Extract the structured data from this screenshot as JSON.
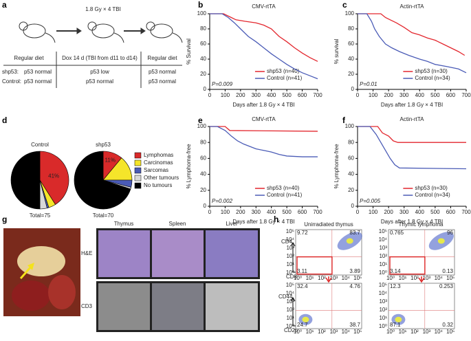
{
  "panel_labels": [
    "a",
    "b",
    "c",
    "d",
    "e",
    "f",
    "g",
    "h"
  ],
  "panel_a": {
    "title": "1.8 Gy × 4 TBI",
    "stages": [
      "Regular diet",
      "Dox 14 d (TBI from d11 to d14)",
      "Regular diet"
    ],
    "rows": [
      {
        "name": "shp53:",
        "cells": [
          "p53 normal",
          "p53 low",
          "p53 normal"
        ]
      },
      {
        "name": "Control:",
        "cells": [
          "p53 normal",
          "p53 normal",
          "p53 normal"
        ]
      }
    ]
  },
  "chart_data": [
    {
      "type": "line",
      "title": "CMV-rtTA",
      "ylabel": "% Survival",
      "xlabel": "Days after 1.8 Gy × 4 TBI",
      "annotation": "P=0.009",
      "legend": "lower right",
      "xlim": [
        0,
        700
      ],
      "xticks": [
        0,
        100,
        200,
        300,
        400,
        500,
        600,
        700
      ],
      "ylim": [
        0,
        100
      ],
      "yticks": [
        0,
        20,
        40,
        60,
        80,
        100
      ],
      "series": [
        {
          "name": "shp53 (n=40)",
          "color": "#e3262d",
          "x": [
            0,
            90,
            140,
            170,
            230,
            300,
            350,
            400,
            450,
            500,
            550,
            600,
            650,
            700
          ],
          "values": [
            100,
            100,
            95,
            92,
            90,
            88,
            85,
            80,
            70,
            63,
            55,
            48,
            42,
            37
          ]
        },
        {
          "name": "Control (n=41)",
          "color": "#4a5bb6",
          "x": [
            0,
            80,
            120,
            160,
            200,
            250,
            300,
            350,
            400,
            450,
            500,
            550,
            600,
            650,
            700
          ],
          "values": [
            100,
            100,
            95,
            88,
            80,
            70,
            63,
            55,
            47,
            40,
            33,
            27,
            22,
            18,
            14
          ]
        }
      ]
    },
    {
      "type": "line",
      "title": "Actin-rtTA",
      "ylabel": "% survival",
      "xlabel": "Days after 1.8 Gy × 4 TBI",
      "annotation": "P=0.01",
      "legend": "lower right",
      "xlim": [
        0,
        700
      ],
      "xticks": [
        0,
        100,
        200,
        300,
        400,
        500,
        600,
        700
      ],
      "ylim": [
        0,
        100
      ],
      "yticks": [
        0,
        20,
        40,
        60,
        80,
        100
      ],
      "series": [
        {
          "name": "shp53 (n=30)",
          "color": "#e3262d",
          "x": [
            0,
            150,
            180,
            210,
            250,
            300,
            350,
            400,
            450,
            500,
            550,
            600,
            650,
            690
          ],
          "values": [
            100,
            100,
            95,
            92,
            88,
            82,
            75,
            72,
            68,
            65,
            60,
            55,
            50,
            45
          ]
        },
        {
          "name": "Control (n=34)",
          "color": "#4a5bb6",
          "x": [
            0,
            60,
            90,
            110,
            140,
            180,
            220,
            270,
            330,
            400,
            450,
            500,
            580,
            650,
            700
          ],
          "values": [
            100,
            100,
            90,
            80,
            70,
            60,
            55,
            50,
            45,
            40,
            37,
            33,
            30,
            27,
            22
          ]
        }
      ]
    },
    {
      "type": "pie",
      "categories": [
        "Lymphomas",
        "Carcinomas",
        "Sarcomas",
        "Other tumours",
        "No tumours"
      ],
      "colors": [
        "#d92a2a",
        "#f5e52a",
        "#4a5bb6",
        "#d8d8d8",
        "#000000"
      ],
      "series": [
        {
          "name": "Control",
          "values": [
            41,
            4,
            1,
            4,
            50
          ],
          "value_labels": [
            "41%",
            null,
            null,
            null,
            null
          ],
          "annotation": "Total=75"
        },
        {
          "name": "shp53",
          "values": [
            11,
            14,
            4,
            1,
            70
          ],
          "value_labels": [
            "11%",
            null,
            null,
            null,
            null
          ],
          "annotation": "Total=70"
        }
      ]
    },
    {
      "type": "line",
      "title": "CMV-rtTA",
      "ylabel": "% Lymphoma-free",
      "xlabel": "Days after 1.8 Gy × 4 TBI",
      "annotation": "P=0.002",
      "legend": "lower right",
      "xlim": [
        0,
        700
      ],
      "xticks": [
        0,
        100,
        200,
        300,
        400,
        500,
        600,
        700
      ],
      "ylim": [
        0,
        100
      ],
      "yticks": [
        0,
        20,
        40,
        60,
        80,
        100
      ],
      "series": [
        {
          "name": "shp53 (n=40)",
          "color": "#e3262d",
          "x": [
            0,
            100,
            130,
            700
          ],
          "values": [
            100,
            100,
            95,
            94
          ]
        },
        {
          "name": "Control (n=41)",
          "color": "#4a5bb6",
          "x": [
            0,
            50,
            100,
            140,
            180,
            220,
            260,
            300,
            350,
            400,
            450,
            500,
            600,
            700
          ],
          "values": [
            100,
            100,
            95,
            88,
            82,
            78,
            75,
            72,
            70,
            68,
            65,
            63,
            62,
            62
          ]
        }
      ]
    },
    {
      "type": "line",
      "title": "Actin-rtTA",
      "ylabel": "% Lymphoma-free",
      "xlabel": "Days after 1.8 Gy × 4 TBI",
      "annotation": "P=0.005",
      "legend": "lower right",
      "xlim": [
        0,
        700
      ],
      "xticks": [
        0,
        100,
        200,
        300,
        400,
        500,
        600,
        700
      ],
      "ylim": [
        0,
        100
      ],
      "yticks": [
        0,
        20,
        40,
        60,
        80,
        100
      ],
      "series": [
        {
          "name": "shp53 (n=30)",
          "color": "#e3262d",
          "x": [
            0,
            130,
            160,
            200,
            230,
            260,
            700
          ],
          "values": [
            100,
            100,
            92,
            88,
            82,
            80,
            80
          ]
        },
        {
          "name": "Control (n=34)",
          "color": "#4a5bb6",
          "x": [
            0,
            80,
            120,
            150,
            180,
            210,
            240,
            270,
            700
          ],
          "values": [
            100,
            100,
            90,
            80,
            70,
            60,
            52,
            48,
            47
          ]
        }
      ]
    }
  ],
  "panel_g": {
    "columns": [
      "Thymus",
      "Spleen",
      "Liver"
    ],
    "rows": [
      "H&E",
      "CD3"
    ]
  },
  "panel_h": {
    "titles": [
      "Unirradiated thymus",
      "Thymic lymphoma"
    ],
    "axes_top": [
      "CD4",
      "CD8"
    ],
    "axes_bottom": [
      "CD44",
      "CD25"
    ],
    "ticks": [
      "10⁰",
      "10¹",
      "10²",
      "10³",
      "10⁴",
      "10⁵"
    ],
    "quadrants": [
      [
        "9.72",
        "83.7",
        "3.11",
        "3.89"
      ],
      [
        "0.765",
        "96",
        "3.14",
        "0.13"
      ],
      [
        "32.4",
        "4.76",
        "24.7",
        "38.7"
      ],
      [
        "12.3",
        "0.253",
        "87.1",
        "0.32"
      ]
    ]
  }
}
